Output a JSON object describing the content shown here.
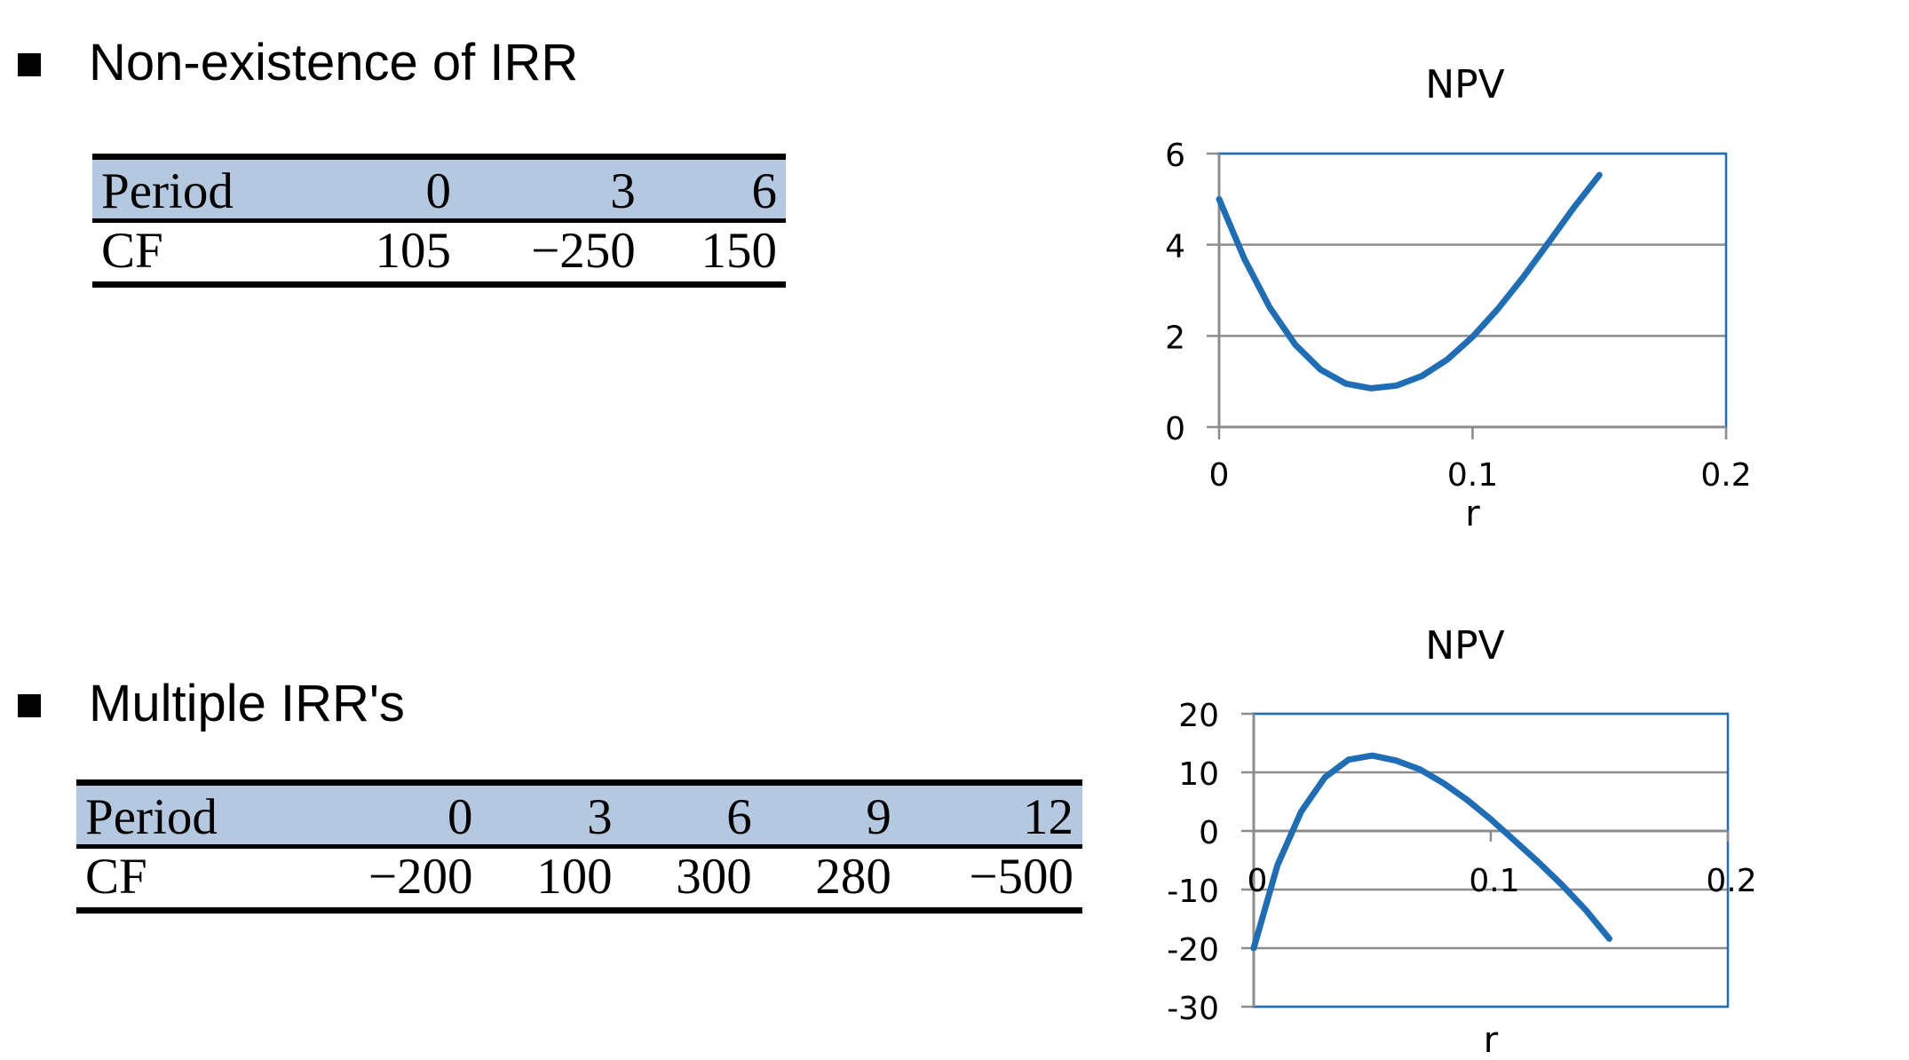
{
  "sections": [
    {
      "heading": "Non-existence of IRR",
      "table": {
        "row_labels": [
          "Period",
          "CF"
        ],
        "periods": [
          "0",
          "3",
          "6"
        ],
        "cf": [
          "105",
          "−250",
          "150"
        ]
      }
    },
    {
      "heading": "Multiple IRR's",
      "table": {
        "row_labels": [
          "Period",
          "CF"
        ],
        "periods": [
          "0",
          "3",
          "6",
          "9",
          "12"
        ],
        "cf": [
          "−200",
          "100",
          "300",
          "280",
          "−500"
        ]
      }
    }
  ],
  "chart_data": [
    {
      "type": "line",
      "title": "NPV",
      "xlabel": "r",
      "ylabel": "",
      "xlim": [
        0,
        0.2
      ],
      "ylim": [
        0,
        6
      ],
      "xticks": [
        "0",
        "0.1",
        "0.2"
      ],
      "yticks": [
        "0",
        "2",
        "4",
        "6"
      ],
      "grid": true,
      "line_color": "#1f6eb5",
      "axis_box_color": "#1f6eb5",
      "series": [
        {
          "x": [
            0,
            0.01,
            0.02,
            0.03,
            0.04,
            0.05,
            0.06,
            0.07,
            0.08,
            0.09,
            0.1,
            0.11,
            0.12,
            0.13,
            0.14,
            0.15
          ],
          "y": [
            5.0,
            3.69,
            2.62,
            1.81,
            1.26,
            0.95,
            0.85,
            0.91,
            1.12,
            1.48,
            1.98,
            2.59,
            3.29,
            4.05,
            4.82,
            5.53
          ]
        }
      ]
    },
    {
      "type": "line",
      "title": "NPV",
      "xlabel": "r",
      "ylabel": "",
      "xlim": [
        0,
        0.2
      ],
      "ylim": [
        -30,
        20
      ],
      "xticks": [
        "0",
        "0.1",
        "0.2"
      ],
      "yticks": [
        "-30",
        "-20",
        "-10",
        "0",
        "10",
        "20"
      ],
      "grid": true,
      "line_color": "#1f6eb5",
      "axis_box_color": "#1f6eb5",
      "series": [
        {
          "x": [
            0,
            0.01,
            0.02,
            0.03,
            0.04,
            0.05,
            0.06,
            0.07,
            0.08,
            0.09,
            0.1,
            0.11,
            0.12,
            0.13,
            0.14,
            0.15
          ],
          "y": [
            -20.0,
            -5.87,
            3.29,
            9.13,
            12.17,
            12.87,
            12.02,
            10.53,
            8.16,
            5.3,
            2.0,
            -1.64,
            -5.31,
            -9.2,
            -13.47,
            -18.4
          ]
        }
      ]
    }
  ]
}
